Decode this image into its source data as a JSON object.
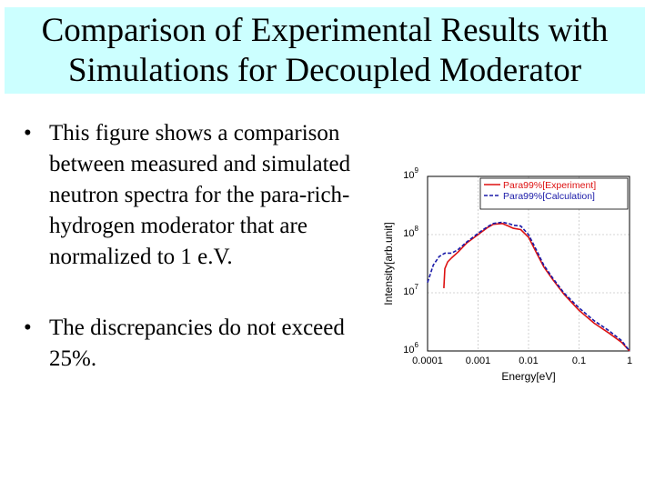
{
  "title": {
    "line1": "Comparison of Experimental Results with",
    "line2": "Simulations for Decoupled Moderator"
  },
  "bullets": [
    {
      "symbol": "•",
      "text": "This figure shows a comparison between measured and simulated neutron spectra for the para-rich-hydrogen moderator that are normalized to 1 e.V."
    },
    {
      "symbol": "•",
      "text": "The discrepancies do not exceed 25%."
    }
  ],
  "chart_data": {
    "type": "line",
    "title": "",
    "xlabel": "Energy[eV]",
    "ylabel": "Intensity[arb.unit]",
    "xscale": "log",
    "yscale": "log",
    "xlim": [
      0.0001,
      1
    ],
    "ylim": [
      1000000,
      1000000000
    ],
    "x_tick_labels": [
      "0.0001",
      "0.001",
      "0.01",
      "0.1",
      "1"
    ],
    "y_tick_labels": [
      {
        "base": "10",
        "exp": "6"
      },
      {
        "base": "10",
        "exp": "7"
      },
      {
        "base": "10",
        "exp": "8"
      },
      {
        "base": "10",
        "exp": "9"
      }
    ],
    "grid": true,
    "legend_position": "top-right",
    "series": [
      {
        "name": "Para99%[Experiment]",
        "color": "#dd1111",
        "dash": "solid",
        "points": [
          [
            0.00021,
            12000000
          ],
          [
            0.00022,
            26000000
          ],
          [
            0.00025,
            34000000
          ],
          [
            0.0003,
            40000000
          ],
          [
            0.0004,
            50000000
          ],
          [
            0.0006,
            72000000
          ],
          [
            0.001,
            100000000
          ],
          [
            0.0015,
            130000000
          ],
          [
            0.002,
            150000000
          ],
          [
            0.003,
            155000000
          ],
          [
            0.004,
            140000000
          ],
          [
            0.005,
            128000000
          ],
          [
            0.007,
            122000000
          ],
          [
            0.01,
            90000000
          ],
          [
            0.015,
            45000000
          ],
          [
            0.02,
            28000000
          ],
          [
            0.03,
            17000000
          ],
          [
            0.05,
            9500000
          ],
          [
            0.1,
            5000000
          ],
          [
            0.2,
            3000000
          ],
          [
            0.4,
            2000000
          ],
          [
            0.7,
            1400000
          ],
          [
            1,
            1000000
          ]
        ]
      },
      {
        "name": "Para99%[Calculation]",
        "color": "#1a1aa8",
        "dash": "dashed",
        "points": [
          [
            0.0001,
            15000000
          ],
          [
            0.00013,
            30000000
          ],
          [
            0.00017,
            42000000
          ],
          [
            0.00022,
            48000000
          ],
          [
            0.0003,
            48000000
          ],
          [
            0.0004,
            55000000
          ],
          [
            0.0006,
            75000000
          ],
          [
            0.001,
            105000000
          ],
          [
            0.0015,
            135000000
          ],
          [
            0.002,
            155000000
          ],
          [
            0.003,
            163000000
          ],
          [
            0.004,
            155000000
          ],
          [
            0.005,
            145000000
          ],
          [
            0.007,
            140000000
          ],
          [
            0.01,
            100000000
          ],
          [
            0.015,
            50000000
          ],
          [
            0.02,
            30000000
          ],
          [
            0.03,
            18000000
          ],
          [
            0.05,
            10000000
          ],
          [
            0.1,
            5500000
          ],
          [
            0.2,
            3300000
          ],
          [
            0.4,
            2200000
          ],
          [
            0.7,
            1500000
          ],
          [
            1,
            1000000
          ]
        ]
      }
    ]
  }
}
